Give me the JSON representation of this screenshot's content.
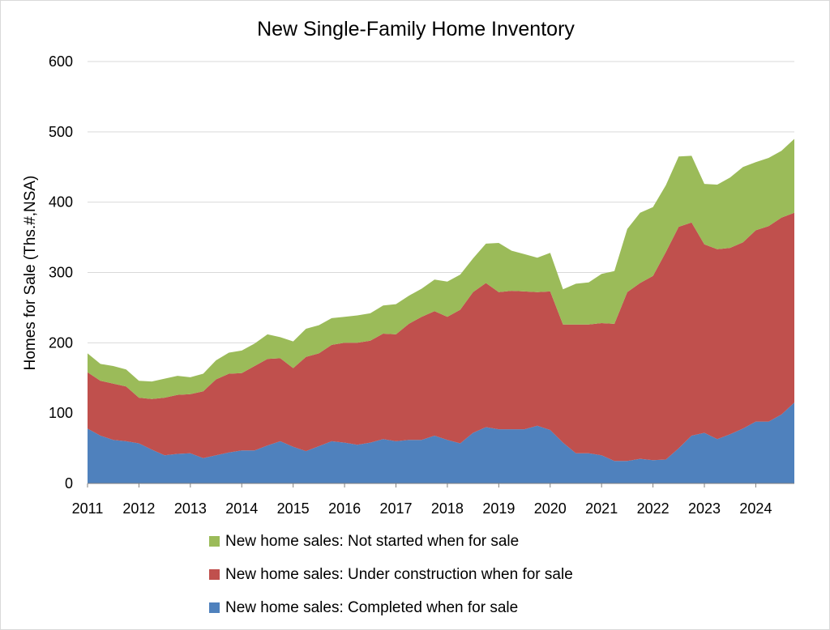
{
  "chart_data": {
    "type": "area",
    "stacked": true,
    "title": "New Single-Family Home Inventory",
    "xlabel": "",
    "ylabel": "Homes for Sale (Ths.#,NSA)",
    "ylim": [
      0,
      600
    ],
    "yticks": [
      0,
      100,
      200,
      300,
      400,
      500,
      600
    ],
    "xlim": [
      2011.0,
      2024.75
    ],
    "xticks": [
      2011,
      2012,
      2013,
      2014,
      2015,
      2016,
      2017,
      2018,
      2019,
      2020,
      2021,
      2022,
      2023,
      2024
    ],
    "grid": "horizontal",
    "legend_position": "bottom",
    "x": [
      2011.0,
      2011.25,
      2011.5,
      2011.75,
      2012.0,
      2012.25,
      2012.5,
      2012.75,
      2013.0,
      2013.25,
      2013.5,
      2013.75,
      2014.0,
      2014.25,
      2014.5,
      2014.75,
      2015.0,
      2015.25,
      2015.5,
      2015.75,
      2016.0,
      2016.25,
      2016.5,
      2016.75,
      2017.0,
      2017.25,
      2017.5,
      2017.75,
      2018.0,
      2018.25,
      2018.5,
      2018.75,
      2019.0,
      2019.25,
      2019.5,
      2019.75,
      2020.0,
      2020.25,
      2020.5,
      2020.75,
      2021.0,
      2021.25,
      2021.5,
      2021.75,
      2022.0,
      2022.25,
      2022.5,
      2022.75,
      2023.0,
      2023.25,
      2023.5,
      2023.75,
      2024.0,
      2024.25,
      2024.5,
      2024.75
    ],
    "series": [
      {
        "name": "New home sales: Completed when for sale",
        "color": "#4f81bd",
        "values": [
          78,
          68,
          62,
          60,
          57,
          48,
          40,
          42,
          43,
          36,
          40,
          44,
          47,
          47,
          54,
          60,
          52,
          46,
          53,
          60,
          58,
          55,
          58,
          63,
          60,
          62,
          62,
          68,
          62,
          57,
          72,
          80,
          77,
          77,
          77,
          82,
          76,
          58,
          43,
          43,
          40,
          32,
          32,
          35,
          33,
          34,
          50,
          68,
          72,
          63,
          70,
          78,
          88,
          88,
          98,
          115
        ]
      },
      {
        "name": "New home sales: Under construction when for sale",
        "color": "#c0504d",
        "values": [
          80,
          78,
          80,
          78,
          65,
          72,
          82,
          84,
          84,
          95,
          108,
          112,
          110,
          120,
          123,
          118,
          112,
          134,
          132,
          137,
          142,
          145,
          145,
          150,
          152,
          165,
          175,
          177,
          175,
          190,
          200,
          205,
          195,
          197,
          196,
          190,
          197,
          168,
          183,
          183,
          188,
          195,
          240,
          250,
          262,
          295,
          315,
          303,
          268,
          270,
          265,
          265,
          272,
          278,
          280,
          270
        ]
      },
      {
        "name": "New home sales: Not started when for sale",
        "color": "#9bbb59",
        "values": [
          27,
          24,
          25,
          24,
          24,
          25,
          27,
          27,
          24,
          25,
          27,
          30,
          32,
          32,
          35,
          30,
          38,
          40,
          40,
          38,
          37,
          39,
          39,
          40,
          43,
          40,
          40,
          45,
          50,
          50,
          48,
          56,
          70,
          57,
          53,
          49,
          55,
          50,
          58,
          60,
          70,
          75,
          90,
          100,
          98,
          95,
          100,
          95,
          86,
          92,
          100,
          107,
          97,
          97,
          95,
          105
        ]
      }
    ]
  }
}
